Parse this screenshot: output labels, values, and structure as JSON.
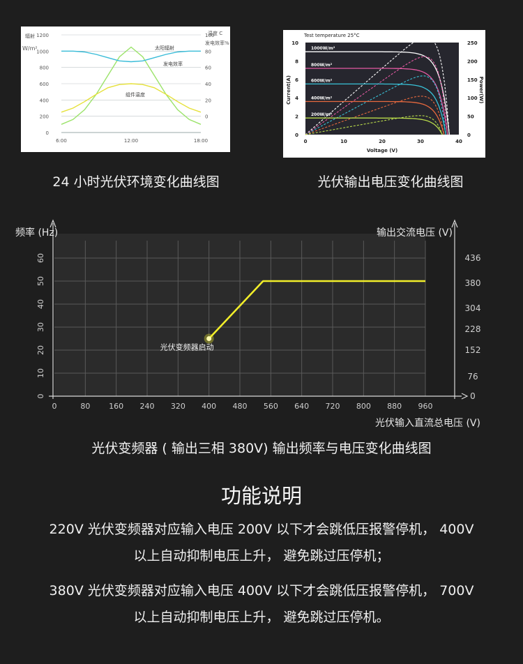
{
  "chart_data": [
    {
      "type": "line",
      "y_left_label": "辐射",
      "y_left_unit": "W/m²",
      "y_right_label": "温度 C",
      "y_right_label2": "发电效率%",
      "x_ticks": [
        "6:00",
        "12:00",
        "18:00"
      ],
      "y_left_ticks": [
        0,
        200,
        400,
        600,
        800,
        1000,
        1200
      ],
      "y_right_ticks": [
        0,
        20,
        40,
        60,
        80,
        100
      ],
      "ylim": [
        0,
        1200
      ],
      "series": [
        {
          "name": "太阳辐射",
          "color": "#9be36a",
          "x": [
            6,
            7,
            8,
            9,
            10,
            11,
            12,
            13,
            14,
            15,
            16,
            17,
            18
          ],
          "y": [
            100,
            160,
            280,
            470,
            700,
            930,
            1050,
            930,
            700,
            470,
            280,
            160,
            100
          ]
        },
        {
          "name": "发电效率",
          "color": "#38bcd8",
          "x": [
            6,
            7,
            8,
            9,
            10,
            11,
            12,
            13,
            14,
            15,
            16,
            17,
            18
          ],
          "y": [
            1000,
            1000,
            990,
            960,
            920,
            880,
            870,
            880,
            920,
            960,
            990,
            1000,
            1000
          ]
        },
        {
          "name": "组件温度",
          "color": "#e6e13a",
          "x": [
            6,
            7,
            8,
            9,
            10,
            11,
            12,
            13,
            14,
            15,
            16,
            17,
            18
          ],
          "y": [
            250,
            300,
            380,
            470,
            550,
            590,
            600,
            590,
            550,
            470,
            380,
            300,
            250
          ]
        }
      ]
    },
    {
      "type": "line",
      "title": "Test temperature 25°C",
      "xlabel": "Voltage (V)",
      "ylabel_left": "Current(A)",
      "ylabel_right": "Power(W)",
      "x_ticks": [
        0,
        10,
        20,
        30,
        40
      ],
      "y_left_ticks": [
        0,
        2,
        4,
        6,
        8,
        10
      ],
      "y_right_ticks": [
        0,
        50,
        100,
        150,
        200,
        250
      ],
      "xlim": [
        0,
        40
      ],
      "ylim_left": [
        0,
        10
      ],
      "ylim_right": [
        0,
        250
      ],
      "series": [
        {
          "name": "1000W/m²",
          "color": "#ffffff",
          "isc": 9.0,
          "pmax": 265
        },
        {
          "name": "800W/m²",
          "color": "#e45aa3",
          "isc": 7.2,
          "pmax": 212
        },
        {
          "name": "600W/m²",
          "color": "#39c2d8",
          "isc": 5.5,
          "pmax": 160
        },
        {
          "name": "400W/m²",
          "color": "#e8693e",
          "isc": 3.6,
          "pmax": 105
        },
        {
          "name": "200W/m²",
          "color": "#b7d94a",
          "isc": 1.8,
          "pmax": 52
        }
      ]
    },
    {
      "type": "line",
      "ylabel_left": "频率 (Hz)",
      "ylabel_right": "输出交流电压 (V)",
      "xlabel": "光伏输入直流总电压 (V)",
      "x_ticks": [
        0,
        80,
        160,
        240,
        320,
        400,
        480,
        560,
        640,
        720,
        800,
        880,
        960
      ],
      "y_left_ticks": [
        0,
        10,
        20,
        30,
        40,
        50,
        60
      ],
      "y_right_ticks": [
        0,
        76,
        152,
        228,
        304,
        380,
        436
      ],
      "xlim": [
        0,
        1000
      ],
      "ylim": [
        0,
        65
      ],
      "annotation": "光伏变频器启动",
      "series": [
        {
          "name": "频率",
          "color": "#f2ee2a",
          "x": [
            400,
            540,
            960
          ],
          "y": [
            25,
            50,
            50
          ]
        }
      ]
    }
  ],
  "captions": {
    "chart1": "24 小时光伏环境变化曲线图",
    "chart2": "光伏输出电压变化曲线图",
    "chart3": "光伏变频器 ( 输出三相 380V) 输出频率与电压变化曲线图"
  },
  "section": {
    "title": "功能说明",
    "para1_line1": "220V 光伏变频器对应输入电压 200V 以下才会跳低压报警停机，  400V",
    "para1_line2": "以上自动抑制电压上升，  避免跳过压停机；",
    "para2_line1": "380V 光伏变频器对应输入电压 400V 以下才会跳低压报警停机，  700V",
    "para2_line2": "以上自动抑制电压上升，  避免跳过压停机。"
  }
}
